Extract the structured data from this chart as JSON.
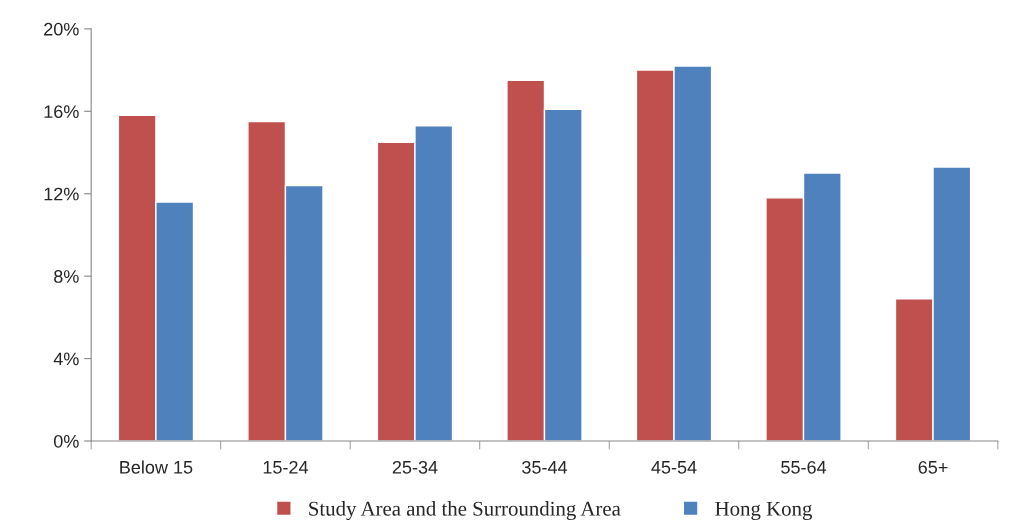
{
  "chart_data": {
    "type": "bar",
    "categories": [
      "Below 15",
      "15-24",
      "25-34",
      "35-44",
      "45-54",
      "55-64",
      "65+"
    ],
    "series": [
      {
        "name": "Study Area and the Surrounding Area",
        "color": "#c0504d",
        "values": [
          15.8,
          15.5,
          14.5,
          17.5,
          18.0,
          11.8,
          6.9
        ]
      },
      {
        "name": "Hong Kong",
        "color": "#4f81bd",
        "values": [
          11.6,
          12.4,
          15.3,
          16.1,
          18.2,
          13.0,
          13.3
        ]
      }
    ],
    "ylim": [
      0,
      20
    ],
    "yticks": [
      {
        "value": 0,
        "label": "0%"
      },
      {
        "value": 4,
        "label": "4%"
      },
      {
        "value": 8,
        "label": "8%"
      },
      {
        "value": 12,
        "label": "12%"
      },
      {
        "value": 16,
        "label": "16%"
      },
      {
        "value": 20,
        "label": "20%"
      }
    ],
    "grid": false,
    "legend": "bottom"
  }
}
